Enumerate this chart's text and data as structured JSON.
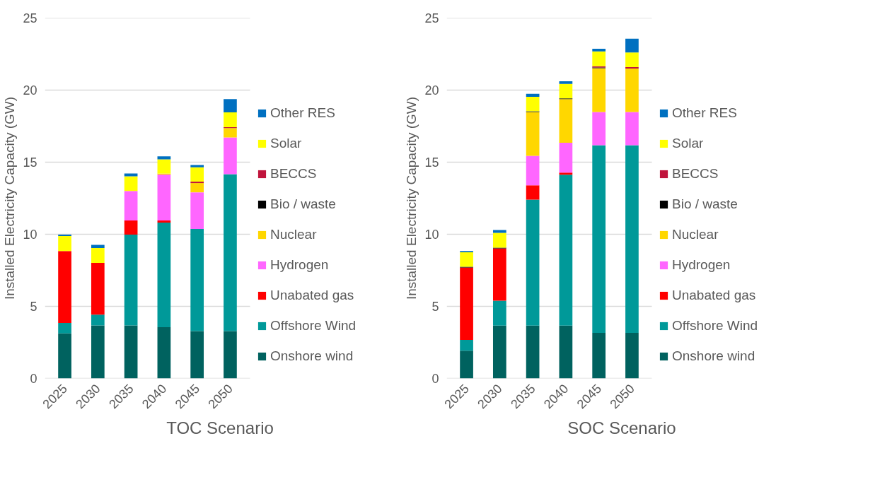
{
  "chart_data": [
    {
      "type": "bar",
      "stacked": true,
      "xlabel": "TOC Scenario",
      "ylabel": "Installed Electricity Capacity (GW)",
      "categories": [
        "2025",
        "2030",
        "2035",
        "2040",
        "2045",
        "2050"
      ],
      "ylim": [
        0,
        25
      ],
      "yticks": [
        0,
        5,
        10,
        15,
        20,
        25
      ],
      "grid": "y",
      "legend": "right",
      "series": [
        {
          "name": "Onshore wind",
          "color": "#00625f",
          "values": [
            3.12,
            3.68,
            3.68,
            3.55,
            3.29,
            3.29
          ]
        },
        {
          "name": "Offshore Wind",
          "color": "#009999",
          "values": [
            0.73,
            0.75,
            6.29,
            7.26,
            7.08,
            10.88
          ]
        },
        {
          "name": "Unabated gas",
          "color": "#ff0000",
          "values": [
            4.98,
            3.59,
            0.98,
            0.14,
            0,
            0
          ]
        },
        {
          "name": "Hydrogen",
          "color": "#ff66ff",
          "values": [
            0,
            0,
            2.05,
            3.19,
            2.54,
            2.54
          ]
        },
        {
          "name": "Nuclear",
          "color": "#ffd700",
          "values": [
            0,
            0,
            0,
            0.07,
            0.64,
            0.65
          ]
        },
        {
          "name": "Bio / waste",
          "color": "#000000",
          "values": [
            0,
            0,
            0,
            0,
            0,
            0
          ]
        },
        {
          "name": "BECCS",
          "color": "#c0143c",
          "values": [
            0,
            0,
            0,
            0,
            0.1,
            0.07
          ]
        },
        {
          "name": "Solar",
          "color": "#ffff00",
          "values": [
            1.05,
            1.03,
            1.02,
            0.99,
            1.0,
            1.02
          ]
        },
        {
          "name": "Other RES",
          "color": "#0070c0",
          "values": [
            0.09,
            0.21,
            0.2,
            0.21,
            0.16,
            0.93
          ]
        }
      ]
    },
    {
      "type": "bar",
      "stacked": true,
      "xlabel": "SOC Scenario",
      "ylabel": "Installed Electricity Capacity (GW)",
      "categories": [
        "2025",
        "2030",
        "2035",
        "2040",
        "2045",
        "2050"
      ],
      "ylim": [
        0,
        25
      ],
      "yticks": [
        0,
        5,
        10,
        15,
        20,
        25
      ],
      "grid": "y",
      "legend": "right",
      "series": [
        {
          "name": "Onshore wind",
          "color": "#00625f",
          "values": [
            1.93,
            3.66,
            3.66,
            3.66,
            3.16,
            3.16
          ]
        },
        {
          "name": "Offshore Wind",
          "color": "#009999",
          "values": [
            0.74,
            1.73,
            8.74,
            10.47,
            13.02,
            13.02
          ]
        },
        {
          "name": "Unabated gas",
          "color": "#ff0000",
          "values": [
            5.02,
            3.63,
            0.99,
            0.15,
            0,
            0
          ]
        },
        {
          "name": "Hydrogen",
          "color": "#ff66ff",
          "values": [
            0,
            0,
            2.05,
            2.07,
            2.3,
            2.3
          ]
        },
        {
          "name": "Nuclear",
          "color": "#ffd700",
          "values": [
            0,
            0,
            3.04,
            3.02,
            3.04,
            3.01
          ]
        },
        {
          "name": "Bio / waste",
          "color": "#000000",
          "values": [
            0.06,
            0.05,
            0.05,
            0.05,
            0.05,
            0
          ]
        },
        {
          "name": "BECCS",
          "color": "#c0143c",
          "values": [
            0,
            0,
            0,
            0,
            0.09,
            0.1
          ]
        },
        {
          "name": "Solar",
          "color": "#ffff00",
          "values": [
            1.0,
            1.03,
            1.01,
            1.01,
            1.02,
            1.02
          ]
        },
        {
          "name": "Other RES",
          "color": "#0070c0",
          "values": [
            0.09,
            0.2,
            0.2,
            0.18,
            0.19,
            0.96
          ]
        }
      ]
    }
  ]
}
